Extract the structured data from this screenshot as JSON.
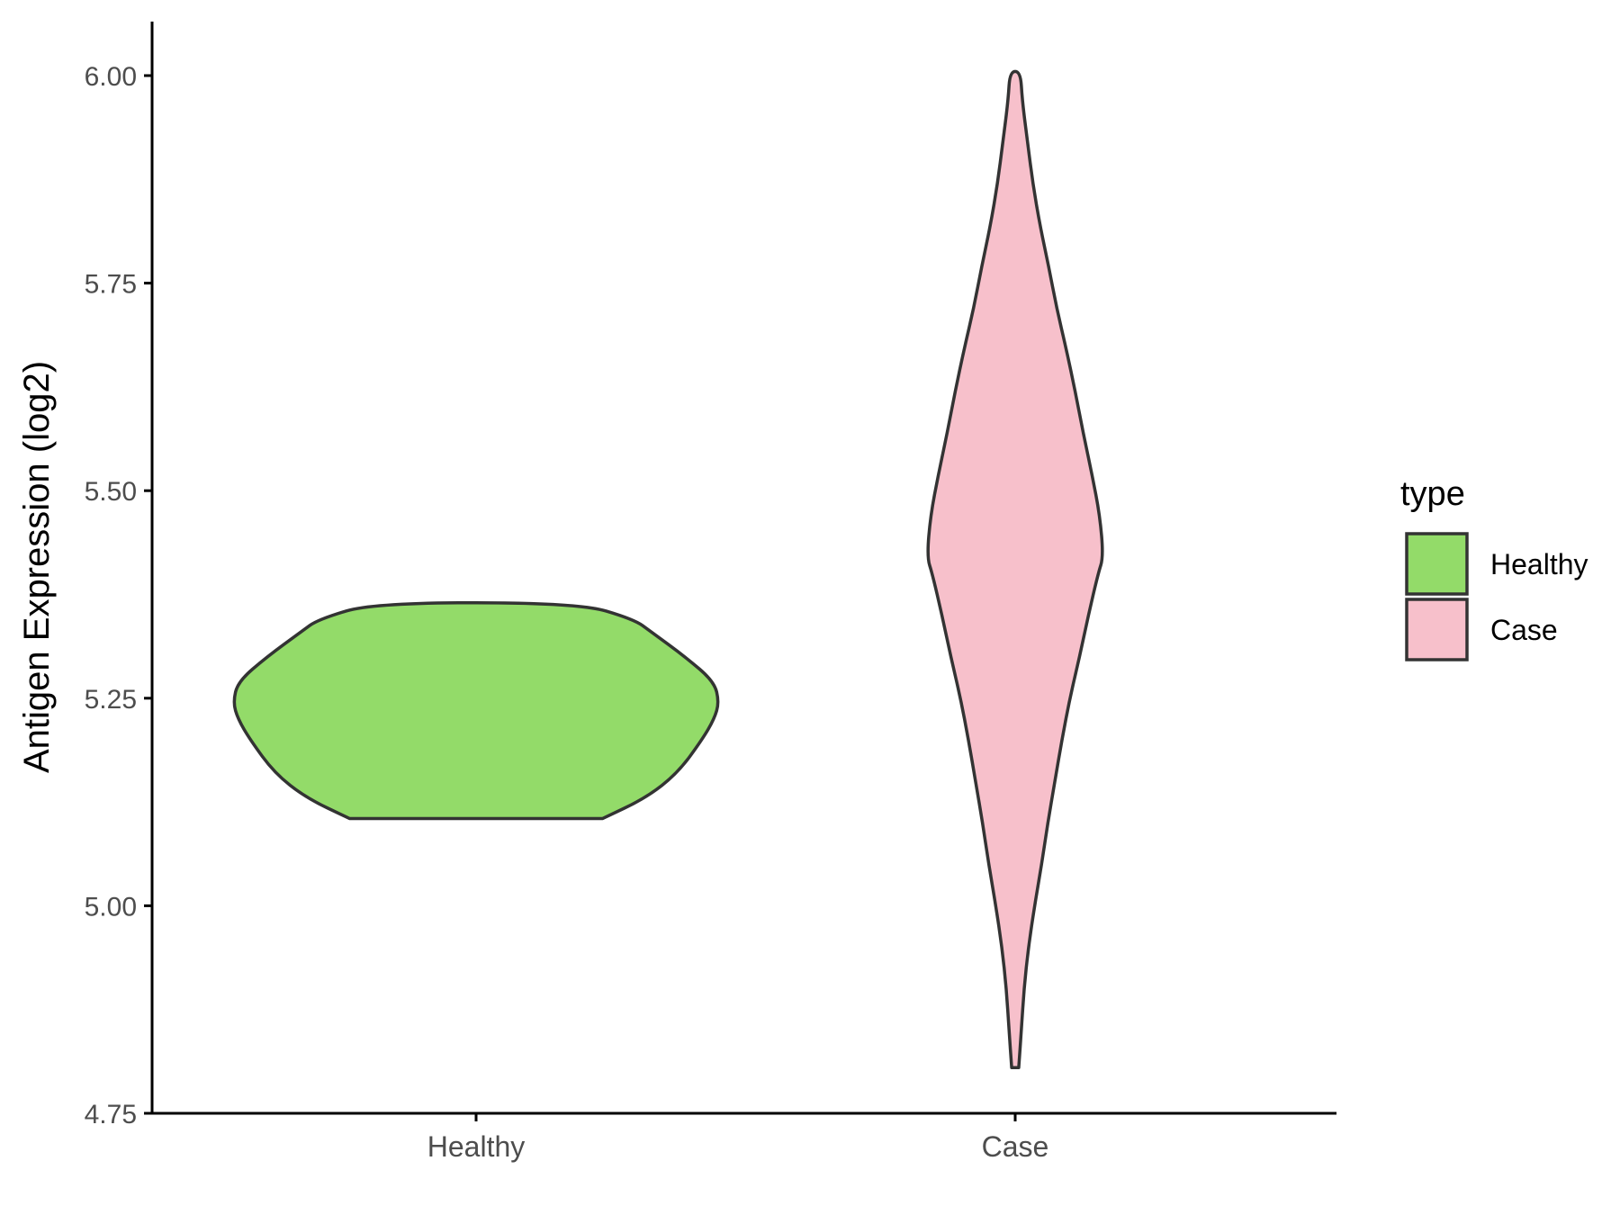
{
  "chart_data": {
    "type": "violin",
    "title": "",
    "xlabel": "",
    "ylabel": "Antigen Expression (log2)",
    "ylim": [
      4.75,
      6.05
    ],
    "yticks": [
      4.75,
      5.0,
      5.25,
      5.5,
      5.75,
      6.0
    ],
    "ytick_labels": [
      "4.75",
      "5.00",
      "5.25",
      "5.50",
      "5.75",
      "6.00"
    ],
    "categories": [
      "Healthy",
      "Case"
    ],
    "grid": false,
    "legend": {
      "title": "type",
      "placement": "right",
      "entries": [
        {
          "label": "Healthy",
          "color": "#93DB69"
        },
        {
          "label": "Case",
          "color": "#F7C0CB"
        }
      ]
    },
    "series": [
      {
        "category": "Healthy",
        "color": "#93DB69",
        "y_min": 5.105,
        "y_max": 5.365,
        "density_profile": [
          [
            5.105,
            0.52
          ],
          [
            5.13,
            0.7
          ],
          [
            5.16,
            0.83
          ],
          [
            5.2,
            0.93
          ],
          [
            5.225,
            0.98
          ],
          [
            5.245,
            1.0
          ],
          [
            5.27,
            0.98
          ],
          [
            5.3,
            0.86
          ],
          [
            5.33,
            0.72
          ],
          [
            5.345,
            0.65
          ],
          [
            5.365,
            0.42
          ]
        ]
      },
      {
        "category": "Case",
        "color": "#F7C0CB",
        "y_min": 4.805,
        "y_max": 6.005,
        "density_profile": [
          [
            4.805,
            0.04
          ],
          [
            4.85,
            0.07
          ],
          [
            4.9,
            0.1
          ],
          [
            4.95,
            0.15
          ],
          [
            5.0,
            0.22
          ],
          [
            5.05,
            0.3
          ],
          [
            5.1,
            0.37
          ],
          [
            5.15,
            0.45
          ],
          [
            5.2,
            0.53
          ],
          [
            5.25,
            0.62
          ],
          [
            5.3,
            0.73
          ],
          [
            5.35,
            0.83
          ],
          [
            5.4,
            0.94
          ],
          [
            5.42,
            1.0
          ],
          [
            5.47,
            0.96
          ],
          [
            5.52,
            0.87
          ],
          [
            5.57,
            0.77
          ],
          [
            5.62,
            0.68
          ],
          [
            5.67,
            0.58
          ],
          [
            5.72,
            0.47
          ],
          [
            5.77,
            0.38
          ],
          [
            5.82,
            0.28
          ],
          [
            5.87,
            0.2
          ],
          [
            5.92,
            0.14
          ],
          [
            5.97,
            0.08
          ],
          [
            6.005,
            0.06
          ]
        ]
      }
    ]
  }
}
